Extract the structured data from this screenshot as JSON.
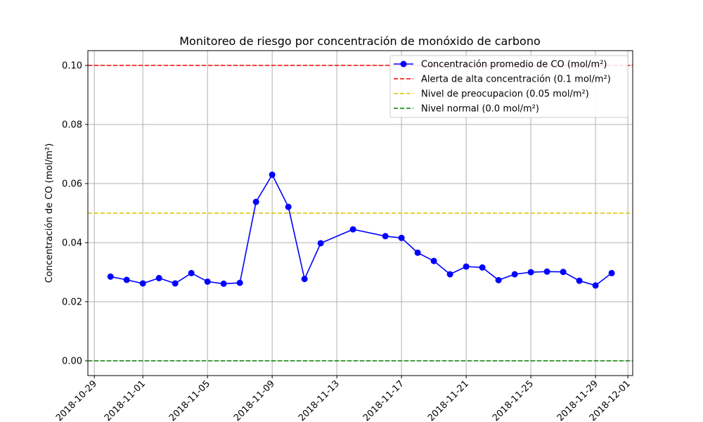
{
  "chart_data": {
    "type": "line",
    "title": "Monitoreo de riesgo por concentración de monóxido de carbono",
    "xlabel": "",
    "ylabel": "Concentración de CO (mol/m²)",
    "xlim": [
      "2018-10-28",
      "2018-12-01"
    ],
    "ylim": [
      -0.005,
      0.105
    ],
    "x_ticks": [
      "2018-10-29",
      "2018-11-01",
      "2018-11-05",
      "2018-11-09",
      "2018-11-13",
      "2018-11-17",
      "2018-11-21",
      "2018-11-25",
      "2018-11-29",
      "2018-12-01"
    ],
    "y_ticks": [
      "0.00",
      "0.02",
      "0.04",
      "0.06",
      "0.08",
      "0.10"
    ],
    "y_tick_values": [
      0,
      0.02,
      0.04,
      0.06,
      0.08,
      0.1
    ],
    "grid": true,
    "legend_position": "top-right",
    "series": [
      {
        "name": "Concentración promedio de CO (mol/m²)",
        "color": "#0000ff",
        "marker": "circle",
        "x": [
          "2018-10-30",
          "2018-10-31",
          "2018-11-01",
          "2018-11-02",
          "2018-11-03",
          "2018-11-04",
          "2018-11-05",
          "2018-11-06",
          "2018-11-07",
          "2018-11-08",
          "2018-11-09",
          "2018-11-10",
          "2018-11-11",
          "2018-11-12",
          "2018-11-14",
          "2018-11-16",
          "2018-11-17",
          "2018-11-18",
          "2018-11-19",
          "2018-11-20",
          "2018-11-21",
          "2018-11-22",
          "2018-11-23",
          "2018-11-24",
          "2018-11-25",
          "2018-11-26",
          "2018-11-27",
          "2018-11-28",
          "2018-11-29",
          "2018-11-30"
        ],
        "y": [
          0.0285,
          0.0274,
          0.0262,
          0.028,
          0.0262,
          0.0297,
          0.0268,
          0.0261,
          0.0264,
          0.0538,
          0.063,
          0.0521,
          0.0277,
          0.0398,
          0.0445,
          0.0422,
          0.0416,
          0.0366,
          0.0338,
          0.0293,
          0.0319,
          0.0316,
          0.0273,
          0.0293,
          0.03,
          0.0302,
          0.0301,
          0.0271,
          0.0255,
          0.0297
        ]
      }
    ],
    "reference_lines": [
      {
        "name": "Alerta de alta concentración (0.1 mol/m²)",
        "value": 0.1,
        "color": "#ff0000"
      },
      {
        "name": "Nivel de preocupacion (0.05 mol/m²)",
        "value": 0.05,
        "color": "#d4c300"
      },
      {
        "name": "Nivel normal (0.0 mol/m²)",
        "value": 0.0,
        "color": "#008000"
      }
    ]
  }
}
